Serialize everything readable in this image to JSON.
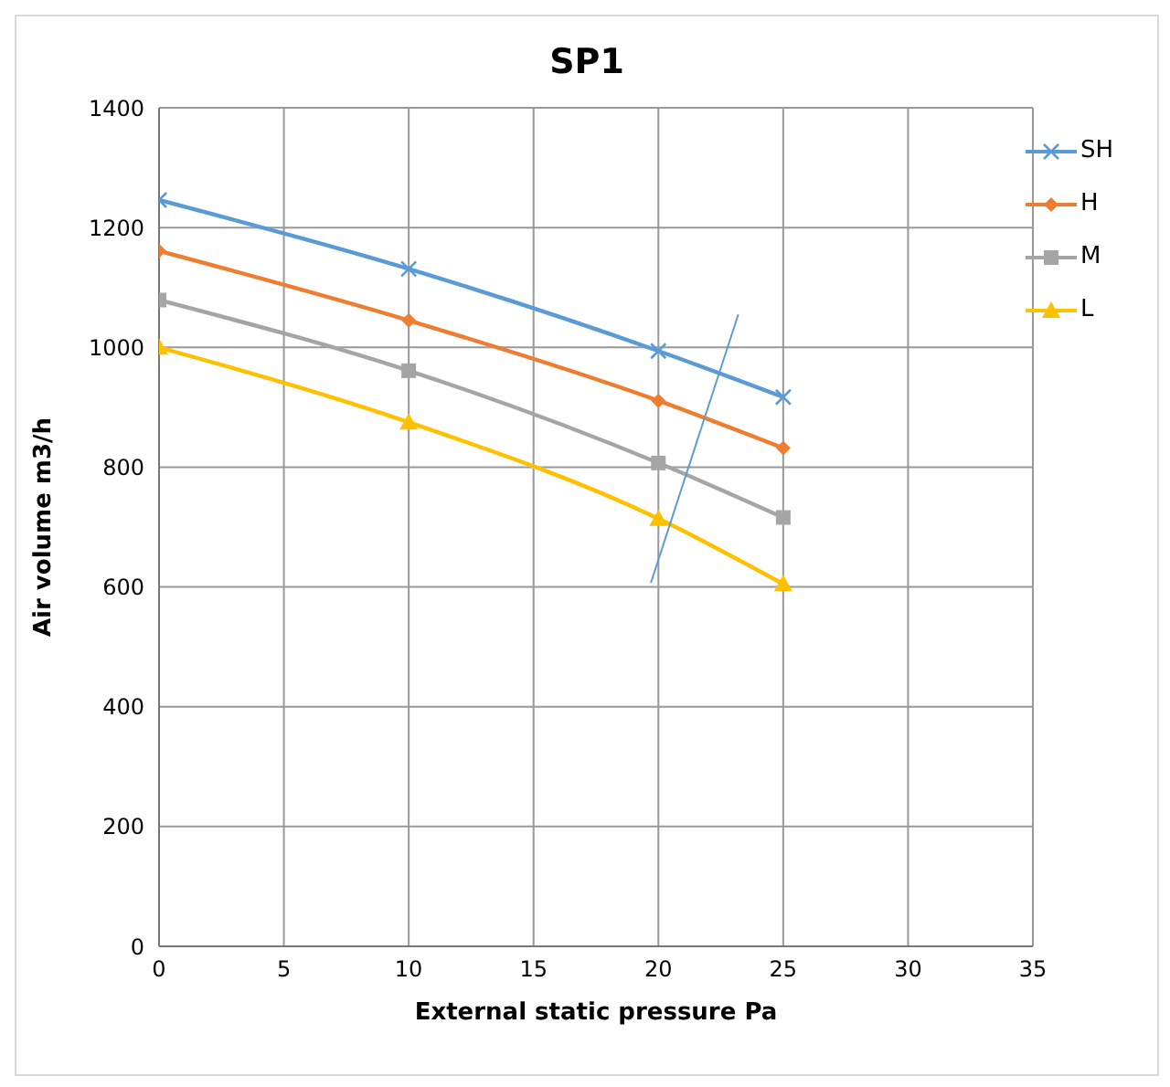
{
  "chart_data": {
    "type": "line",
    "title": "SP1",
    "xlabel": "External static pressure  Pa",
    "ylabel": "Air volume  m3/h",
    "xlim": [
      0,
      35
    ],
    "xticks": [
      0,
      5,
      10,
      15,
      20,
      25,
      30,
      35
    ],
    "ylim": [
      0,
      1400
    ],
    "yticks": [
      0,
      200,
      400,
      600,
      800,
      1000,
      1200,
      1400
    ],
    "grid": true,
    "legend": "top right",
    "line_style": "solid",
    "series": [
      {
        "name": "SH",
        "color": "#5b9bd5",
        "marker": "cross",
        "x": [
          0,
          10,
          20,
          25
        ],
        "values": [
          1246,
          1131,
          994,
          917
        ]
      },
      {
        "name": "H",
        "color": "#ed7d31",
        "marker": "diamond",
        "x": [
          0,
          10,
          20,
          25
        ],
        "values": [
          1161,
          1045,
          911,
          832
        ]
      },
      {
        "name": "M",
        "color": "#a5a5a5",
        "marker": "square",
        "x": [
          0,
          10,
          20,
          25
        ],
        "values": [
          1079,
          961,
          807,
          716
        ]
      },
      {
        "name": "L",
        "color": "#ffc000",
        "marker": "triangle",
        "x": [
          0,
          10,
          20,
          25
        ],
        "values": [
          1000,
          875,
          714,
          605
        ]
      },
      {
        "color": "#5b9bd5",
        "marker": "none",
        "x": [
          19.7,
          23.2
        ],
        "values": [
          607,
          1055
        ]
      }
    ]
  }
}
